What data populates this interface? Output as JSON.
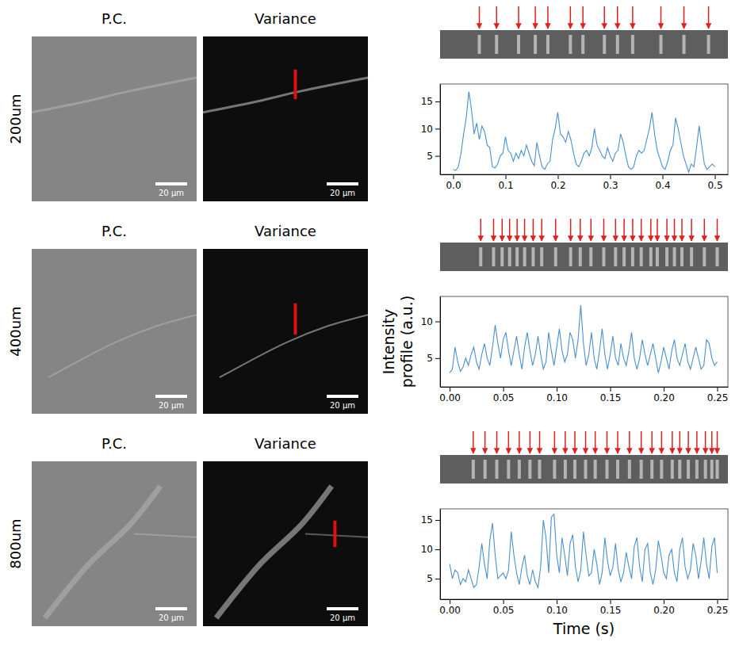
{
  "figure": {
    "rows": [
      {
        "label": "200um",
        "image_titles": [
          "P.C.",
          "Variance"
        ],
        "scale_bar": "20 μm"
      },
      {
        "label": "400um",
        "image_titles": [
          "P.C.",
          "Variance"
        ],
        "scale_bar": "20 μm"
      },
      {
        "label": "800um",
        "image_titles": [
          "P.C.",
          "Variance"
        ],
        "scale_bar": "20 μm"
      }
    ]
  },
  "chart_data": [
    {
      "type": "line",
      "x": [
        0,
        0.005,
        0.01,
        0.015,
        0.02,
        0.025,
        0.03,
        0.035,
        0.04,
        0.045,
        0.05,
        0.055,
        0.06,
        0.065,
        0.07,
        0.075,
        0.08,
        0.085,
        0.09,
        0.095,
        0.1,
        0.105,
        0.11,
        0.115,
        0.12,
        0.125,
        0.13,
        0.135,
        0.14,
        0.145,
        0.15,
        0.155,
        0.16,
        0.165,
        0.17,
        0.175,
        0.18,
        0.185,
        0.19,
        0.195,
        0.2,
        0.205,
        0.21,
        0.215,
        0.22,
        0.225,
        0.23,
        0.235,
        0.24,
        0.245,
        0.25,
        0.255,
        0.26,
        0.265,
        0.27,
        0.275,
        0.28,
        0.285,
        0.29,
        0.295,
        0.3,
        0.305,
        0.31,
        0.315,
        0.32,
        0.325,
        0.33,
        0.335,
        0.34,
        0.345,
        0.35,
        0.355,
        0.36,
        0.365,
        0.37,
        0.375,
        0.38,
        0.385,
        0.39,
        0.395,
        0.4,
        0.405,
        0.41,
        0.415,
        0.42,
        0.425,
        0.43,
        0.435,
        0.44,
        0.445,
        0.45,
        0.455,
        0.46,
        0.465,
        0.47,
        0.475,
        0.48,
        0.485,
        0.49,
        0.495,
        0.5
      ],
      "series": [
        {
          "color": "#4a90d0",
          "values": [
            2.5,
            2.3,
            3.0,
            5.5,
            9.0,
            12.0,
            16.8,
            13.5,
            9.0,
            11.0,
            8.0,
            10.5,
            9.5,
            7.0,
            6.5,
            3.0,
            2.8,
            3.5,
            5.0,
            5.5,
            8.5,
            6.0,
            5.5,
            4.0,
            5.5,
            4.5,
            6.0,
            5.0,
            7.0,
            5.5,
            4.0,
            3.2,
            7.5,
            5.0,
            3.0,
            2.5,
            3.5,
            4.0,
            8.0,
            10.0,
            13.0,
            9.0,
            8.5,
            7.5,
            9.5,
            8.0,
            5.5,
            3.5,
            3.0,
            4.0,
            5.5,
            6.0,
            5.0,
            6.5,
            10.0,
            7.0,
            6.0,
            5.0,
            4.5,
            6.5,
            5.0,
            4.0,
            5.5,
            6.0,
            9.0,
            7.5,
            5.0,
            3.0,
            2.5,
            3.0,
            5.0,
            6.0,
            5.5,
            6.0,
            8.0,
            10.0,
            13.0,
            9.0,
            6.0,
            4.5,
            3.0,
            2.5,
            4.0,
            6.0,
            7.0,
            12.0,
            10.0,
            7.5,
            5.0,
            3.5,
            2.0,
            3.5,
            3.0,
            6.5,
            10.5,
            7.0,
            3.5,
            2.5,
            3.0,
            3.5,
            3.0
          ]
        }
      ],
      "xlim": [
        -0.025,
        0.525
      ],
      "ylim": [
        1.6,
        18.2
      ],
      "xticks": [
        {
          "value": 0,
          "label": "0.0"
        },
        0.1,
        0.2,
        0.3,
        0.4,
        0.5
      ],
      "yticks": [
        5,
        10,
        15
      ],
      "arrows": [
        0.05,
        0.083,
        0.125,
        0.157,
        0.181,
        0.224,
        0.248,
        0.289,
        0.314,
        0.343,
        0.397,
        0.441,
        0.488
      ]
    },
    {
      "type": "line",
      "ylabel": "Intensity profile (a.u.)",
      "x": [
        0,
        0.0025,
        0.005,
        0.0075,
        0.01,
        0.0125,
        0.015,
        0.0175,
        0.02,
        0.0225,
        0.025,
        0.0275,
        0.03,
        0.0325,
        0.035,
        0.0375,
        0.04,
        0.0425,
        0.045,
        0.0475,
        0.05,
        0.0525,
        0.055,
        0.0575,
        0.06,
        0.0625,
        0.065,
        0.0675,
        0.07,
        0.0725,
        0.075,
        0.0775,
        0.08,
        0.0825,
        0.085,
        0.0875,
        0.09,
        0.0925,
        0.095,
        0.0975,
        0.1,
        0.1025,
        0.105,
        0.1075,
        0.11,
        0.1125,
        0.115,
        0.1175,
        0.12,
        0.1225,
        0.125,
        0.1275,
        0.13,
        0.1325,
        0.135,
        0.1375,
        0.14,
        0.1425,
        0.145,
        0.1475,
        0.15,
        0.1525,
        0.155,
        0.1575,
        0.16,
        0.1625,
        0.165,
        0.1675,
        0.17,
        0.1725,
        0.175,
        0.1775,
        0.18,
        0.1825,
        0.185,
        0.1875,
        0.19,
        0.1925,
        0.195,
        0.1975,
        0.2,
        0.2025,
        0.205,
        0.2075,
        0.21,
        0.2125,
        0.215,
        0.2175,
        0.22,
        0.2225,
        0.225,
        0.2275,
        0.23,
        0.2325,
        0.235,
        0.2375,
        0.24,
        0.2425,
        0.245,
        0.2475,
        0.25
      ],
      "series": [
        {
          "color": "#4a90d0",
          "values": [
            3.0,
            3.5,
            6.5,
            4.5,
            3.2,
            3.8,
            5.0,
            4.0,
            5.5,
            6.5,
            4.5,
            3.5,
            5.5,
            7.0,
            5.0,
            4.0,
            6.5,
            9.5,
            7.0,
            5.0,
            7.5,
            8.5,
            6.0,
            4.0,
            6.0,
            8.0,
            5.5,
            3.5,
            6.5,
            8.5,
            6.0,
            4.0,
            5.5,
            8.0,
            5.5,
            3.5,
            4.5,
            8.5,
            6.0,
            4.0,
            6.5,
            9.0,
            6.0,
            4.5,
            5.5,
            8.5,
            7.5,
            5.0,
            7.5,
            12.2,
            7.0,
            4.0,
            5.5,
            8.5,
            5.0,
            3.5,
            6.0,
            9.0,
            5.5,
            3.5,
            5.5,
            8.0,
            5.0,
            4.0,
            7.0,
            5.0,
            4.0,
            6.0,
            8.5,
            5.0,
            3.5,
            5.0,
            7.5,
            5.5,
            4.0,
            5.5,
            7.0,
            5.0,
            3.0,
            4.5,
            6.5,
            5.0,
            3.5,
            6.0,
            7.5,
            5.0,
            4.0,
            5.5,
            7.0,
            4.5,
            3.5,
            5.0,
            6.5,
            5.0,
            3.5,
            4.0,
            7.5,
            7.0,
            5.0,
            4.0,
            4.5
          ]
        }
      ],
      "xlim": [
        -0.009,
        0.26
      ],
      "ylim": [
        1.1,
        13.4
      ],
      "xticks": [
        {
          "value": 0,
          "label": "0.00"
        },
        0.05,
        {
          "value": 0.1,
          "label": "0.10"
        },
        0.15,
        {
          "value": 0.2,
          "label": "0.20"
        },
        0.25
      ],
      "yticks": [
        5,
        10
      ],
      "arrows": [
        0.029,
        0.041,
        0.049,
        0.056,
        0.063,
        0.07,
        0.078,
        0.086,
        0.099,
        0.113,
        0.122,
        0.132,
        0.144,
        0.155,
        0.163,
        0.171,
        0.179,
        0.188,
        0.194,
        0.203,
        0.21,
        0.217,
        0.226,
        0.238,
        0.25
      ]
    },
    {
      "type": "line",
      "xlabel": "Time (s)",
      "x": [
        0,
        0.0025,
        0.005,
        0.0075,
        0.01,
        0.0125,
        0.015,
        0.0175,
        0.02,
        0.0225,
        0.025,
        0.0275,
        0.03,
        0.0325,
        0.035,
        0.0375,
        0.04,
        0.0425,
        0.045,
        0.0475,
        0.05,
        0.0525,
        0.055,
        0.0575,
        0.06,
        0.0625,
        0.065,
        0.0675,
        0.07,
        0.0725,
        0.075,
        0.0775,
        0.08,
        0.0825,
        0.085,
        0.0875,
        0.09,
        0.0925,
        0.095,
        0.0975,
        0.1,
        0.1025,
        0.105,
        0.1075,
        0.11,
        0.1125,
        0.115,
        0.1175,
        0.12,
        0.1225,
        0.125,
        0.1275,
        0.13,
        0.1325,
        0.135,
        0.1375,
        0.14,
        0.1425,
        0.145,
        0.1475,
        0.15,
        0.1525,
        0.155,
        0.1575,
        0.16,
        0.1625,
        0.165,
        0.1675,
        0.17,
        0.1725,
        0.175,
        0.1775,
        0.18,
        0.1825,
        0.185,
        0.1875,
        0.19,
        0.1925,
        0.195,
        0.1975,
        0.2,
        0.2025,
        0.205,
        0.2075,
        0.21,
        0.2125,
        0.215,
        0.2175,
        0.22,
        0.2225,
        0.225,
        0.2275,
        0.23,
        0.2325,
        0.235,
        0.2375,
        0.24,
        0.2425,
        0.245,
        0.2475,
        0.25
      ],
      "series": [
        {
          "color": "#4a90d0",
          "values": [
            7.5,
            5.0,
            6.5,
            6.0,
            4.0,
            5.0,
            4.5,
            6.5,
            5.0,
            3.5,
            4.0,
            7.0,
            11.0,
            7.5,
            5.0,
            11.5,
            14.5,
            9.0,
            5.0,
            5.5,
            6.0,
            5.0,
            6.5,
            13.0,
            9.0,
            6.0,
            4.0,
            7.0,
            9.0,
            5.5,
            4.0,
            6.5,
            4.5,
            3.5,
            7.0,
            15.0,
            12.0,
            6.0,
            15.5,
            16.0,
            9.0,
            6.0,
            12.0,
            9.0,
            5.5,
            11.0,
            12.5,
            7.0,
            4.5,
            6.5,
            13.0,
            9.0,
            5.5,
            6.0,
            10.0,
            7.5,
            4.0,
            6.0,
            12.0,
            8.0,
            5.5,
            7.0,
            11.0,
            6.5,
            4.5,
            6.0,
            9.5,
            7.0,
            5.0,
            10.5,
            12.0,
            7.0,
            4.5,
            10.0,
            11.0,
            6.0,
            4.0,
            6.5,
            11.5,
            9.0,
            6.0,
            5.0,
            9.0,
            10.0,
            6.0,
            4.5,
            10.0,
            12.0,
            7.0,
            5.0,
            6.5,
            11.0,
            9.0,
            5.0,
            8.0,
            12.0,
            7.5,
            5.0,
            10.5,
            12.0,
            6.0
          ]
        }
      ],
      "xlim": [
        -0.009,
        0.26
      ],
      "ylim": [
        1.5,
        16.9
      ],
      "xticks": [
        {
          "value": 0,
          "label": "0.00"
        },
        0.05,
        {
          "value": 0.1,
          "label": "0.10"
        },
        0.15,
        {
          "value": 0.2,
          "label": "0.20"
        },
        0.25
      ],
      "yticks": [
        5,
        10,
        15
      ],
      "arrows": [
        0.022,
        0.033,
        0.044,
        0.055,
        0.065,
        0.075,
        0.084,
        0.098,
        0.108,
        0.117,
        0.127,
        0.136,
        0.147,
        0.157,
        0.168,
        0.179,
        0.189,
        0.198,
        0.208,
        0.215,
        0.223,
        0.231,
        0.239,
        0.245,
        0.25
      ]
    }
  ]
}
